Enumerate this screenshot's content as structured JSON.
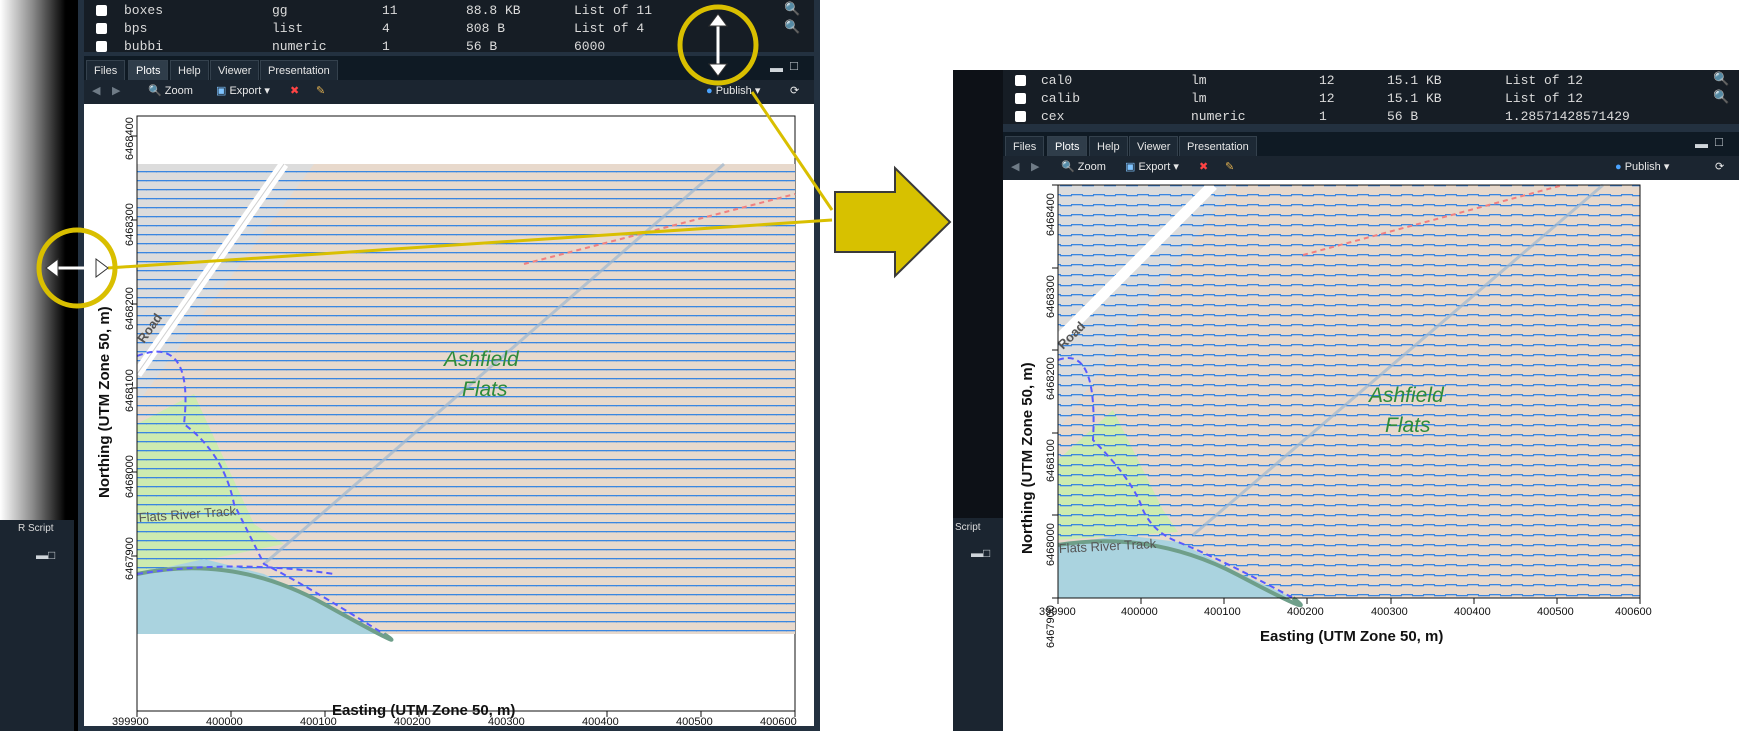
{
  "left": {
    "environment_rows": [
      {
        "name": "boxes",
        "type": "gg",
        "length": "11",
        "size": "88.8 KB",
        "value": "List of 11"
      },
      {
        "name": "bps",
        "type": "list",
        "length": "4",
        "size": "808 B",
        "value": "List of 4"
      },
      {
        "name": "bubbi",
        "type": "numeric",
        "length": "1",
        "size": "56 B",
        "value": "6000"
      }
    ],
    "side_stub_label": "R Script"
  },
  "right": {
    "environment_rows": [
      {
        "name": "cal0",
        "type": "lm",
        "length": "12",
        "size": "15.1 KB",
        "value": "List of 12"
      },
      {
        "name": "calib",
        "type": "lm",
        "length": "12",
        "size": "15.1 KB",
        "value": "List of 12"
      },
      {
        "name": "cex",
        "type": "numeric",
        "length": "1",
        "size": "56 B",
        "value": "1.28571428571429"
      }
    ],
    "side_stub_label": "Script"
  },
  "tabs": [
    "Files",
    "Plots",
    "Help",
    "Viewer",
    "Presentation"
  ],
  "active_tab": "Plots",
  "toolbar": {
    "zoom": "Zoom",
    "export": "Export",
    "publish": "Publish"
  },
  "plot": {
    "xlabel": "Easting (UTM Zone 50, m)",
    "ylabel": "Northing (UTM Zone 50, m)",
    "x_ticks": [
      "399900",
      "400000",
      "400100",
      "400200",
      "400300",
      "400400",
      "400500",
      "400600"
    ],
    "y_ticks": [
      "6467900",
      "6468000",
      "6468100",
      "6468200",
      "6468300",
      "6468400"
    ],
    "map_labels": {
      "place_line1": "Ashfield",
      "place_line2": "Flats",
      "track": "Flats River Track",
      "road": "Road"
    }
  },
  "colors": {
    "ide_bg": "#161d25",
    "highlight_ring": "#d9bf00",
    "arrow_fill": "#d7c100",
    "wetland_dash": "#3a86e0",
    "water": "#aad3df",
    "land": "#e8d9cc",
    "grass": "#cdebb0"
  }
}
